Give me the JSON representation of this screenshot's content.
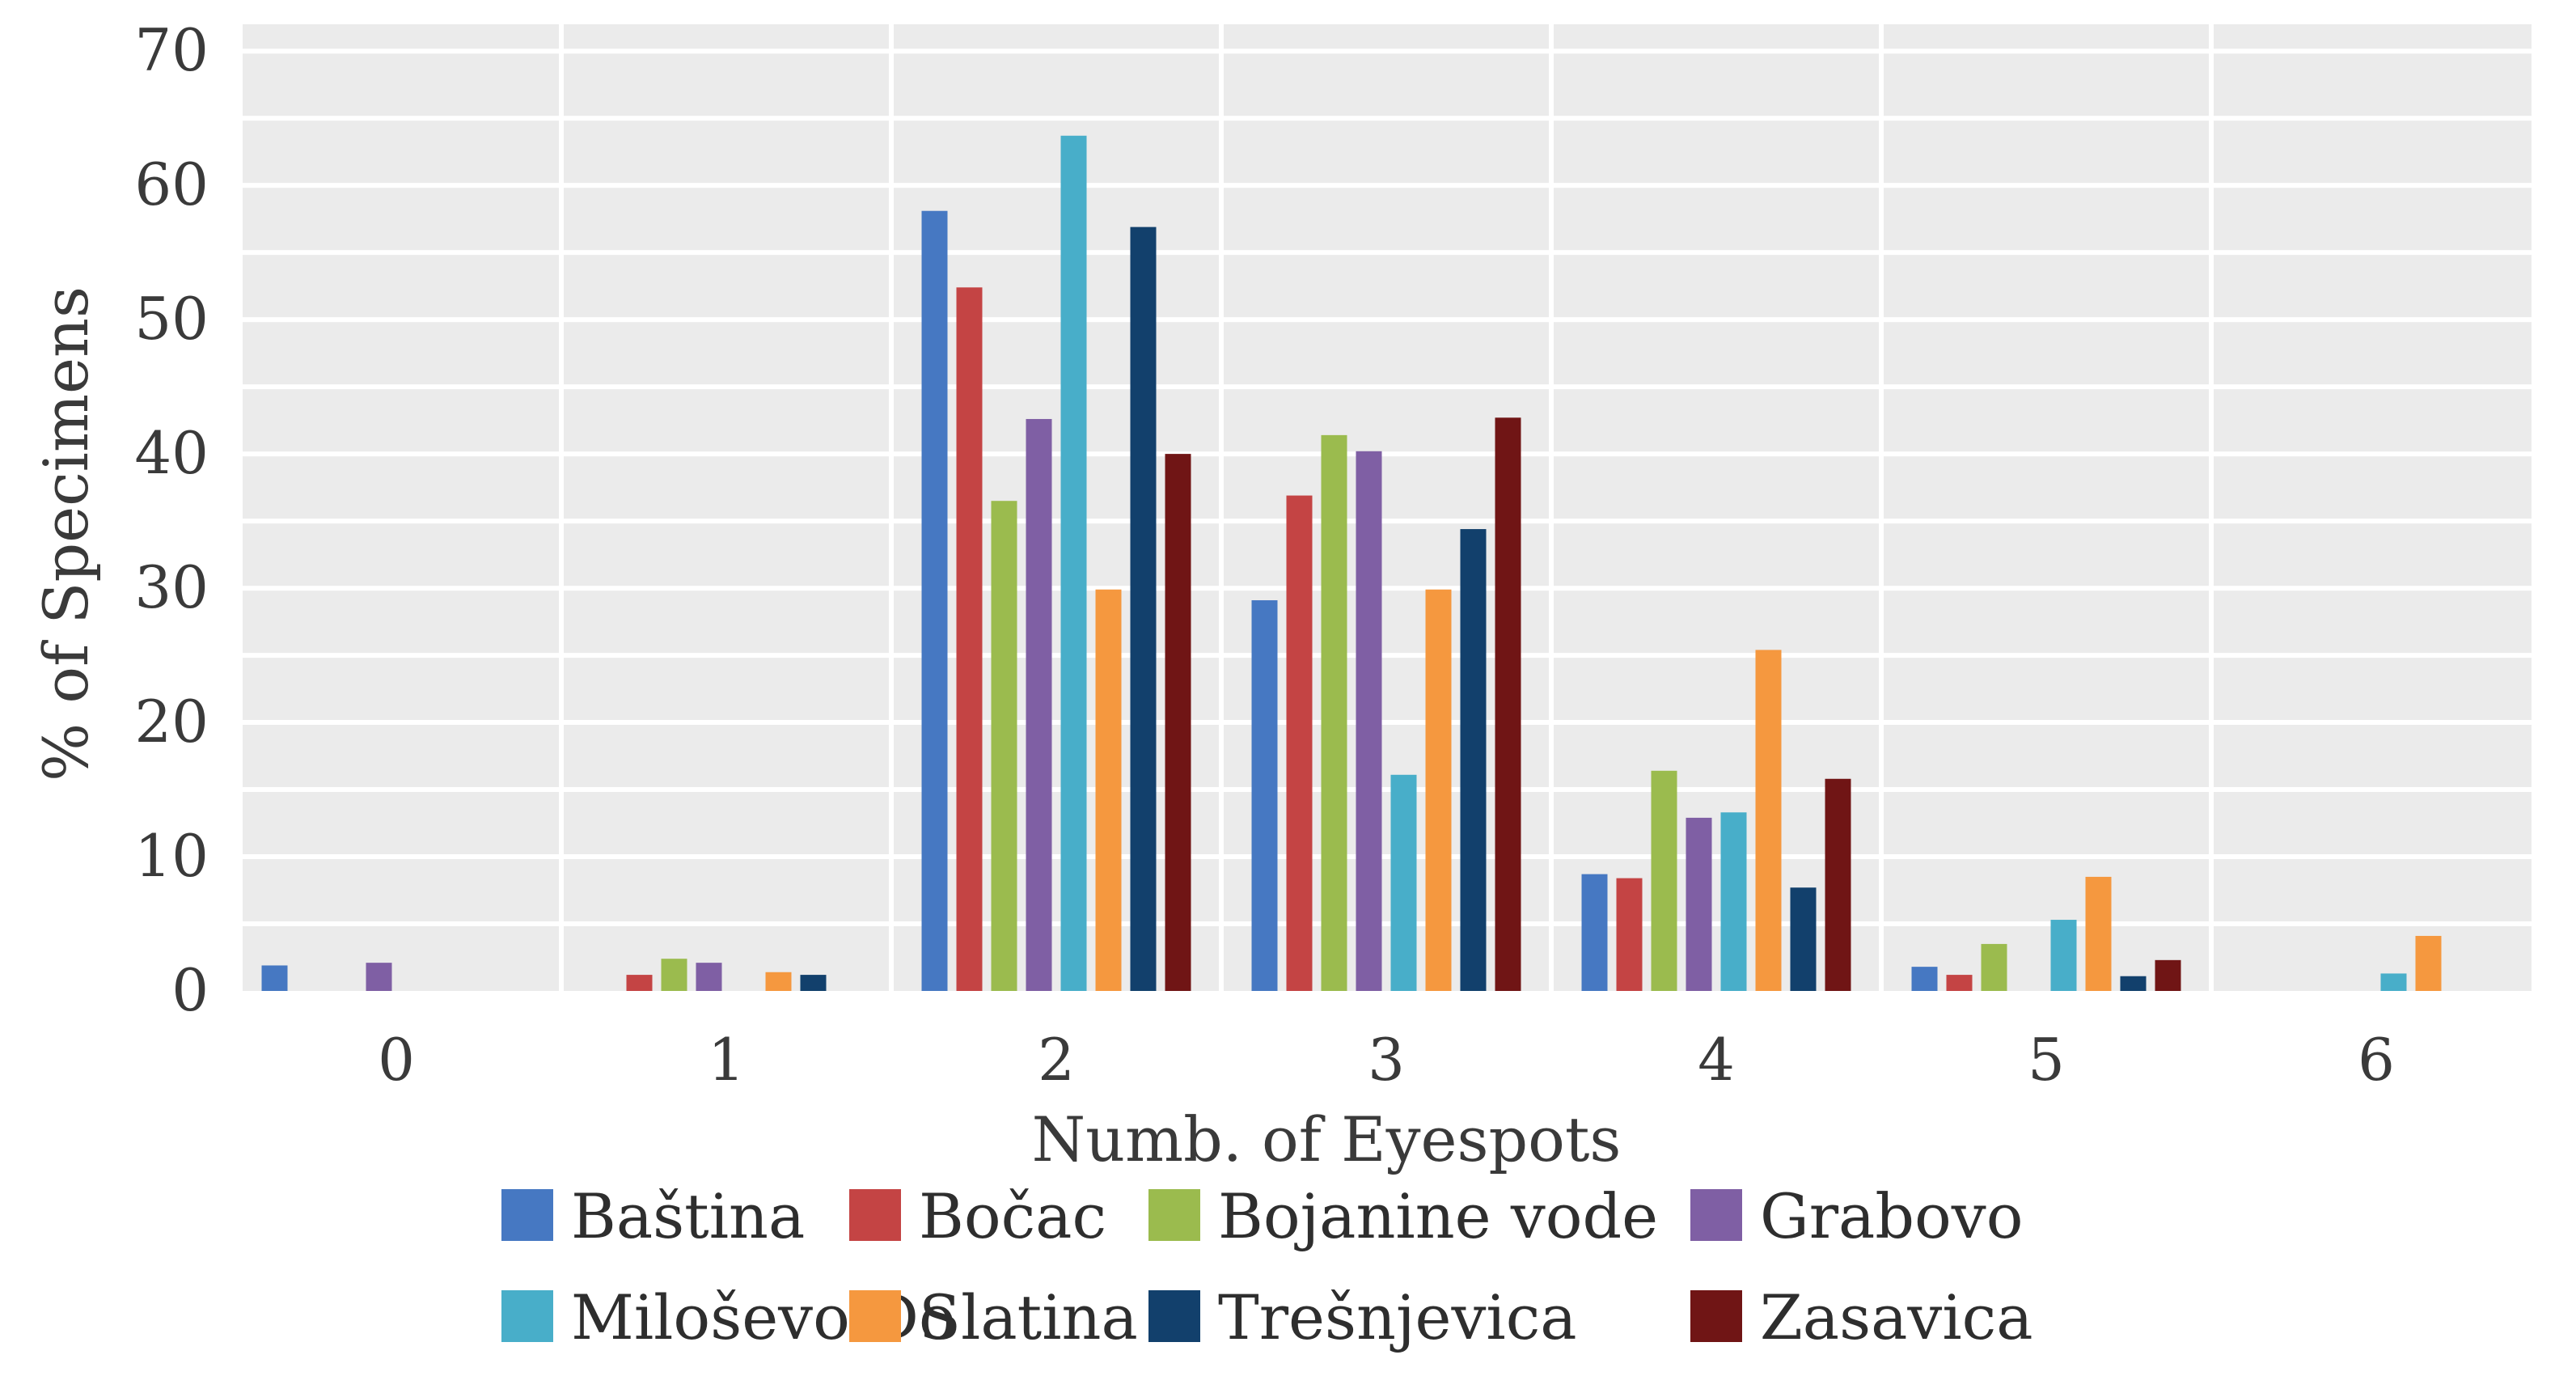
{
  "chart_data": {
    "type": "bar",
    "title": "",
    "xlabel": "Numb. of Eyespots",
    "ylabel": "% of Specimens",
    "ylim": [
      0,
      72
    ],
    "yticks": [
      0,
      10,
      20,
      30,
      40,
      50,
      60,
      70
    ],
    "grid": true,
    "legend_position": "bottom",
    "categories": [
      "0",
      "1",
      "2",
      "3",
      "4",
      "5",
      "6"
    ],
    "series": [
      {
        "name": "Baština",
        "color": "#4678c2",
        "values": [
          1.9,
          0,
          58.1,
          29.1,
          8.7,
          1.8,
          0
        ]
      },
      {
        "name": "Bočac",
        "color": "#c44444",
        "values": [
          0,
          1.2,
          52.4,
          36.9,
          8.4,
          1.2,
          0
        ]
      },
      {
        "name": "Bojanine vode",
        "color": "#9bbb4e",
        "values": [
          0,
          2.4,
          36.5,
          41.4,
          16.4,
          3.5,
          0
        ]
      },
      {
        "name": "Grabovo",
        "color": "#7f5fa4",
        "values": [
          2.1,
          2.1,
          42.6,
          40.2,
          12.9,
          0,
          0
        ]
      },
      {
        "name": "Miloševo Do",
        "color": "#48aec9",
        "values": [
          0,
          0,
          63.7,
          16.1,
          13.3,
          5.3,
          1.3
        ]
      },
      {
        "name": "Slatina",
        "color": "#f5983f",
        "values": [
          0,
          1.4,
          29.9,
          29.9,
          25.4,
          8.5,
          4.1
        ]
      },
      {
        "name": "Trešnjevica",
        "color": "#12406c",
        "values": [
          0,
          1.2,
          56.9,
          34.4,
          7.7,
          1.1,
          0
        ]
      },
      {
        "name": "Zasavica",
        "color": "#701515",
        "values": [
          0,
          0,
          40.0,
          42.7,
          15.8,
          2.3,
          0
        ]
      }
    ]
  }
}
